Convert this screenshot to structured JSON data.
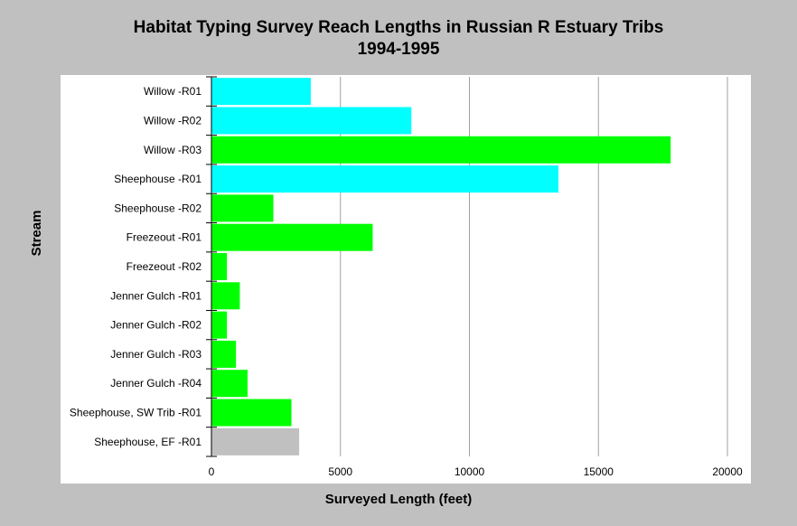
{
  "chart_data": {
    "type": "bar",
    "orientation": "horizontal",
    "title": "Habitat Typing Survey Reach Lengths in Russian R Estuary Tribs",
    "subtitle": "1994-1995",
    "xlabel": "Surveyed Length (feet)",
    "ylabel": "Stream",
    "xlim": [
      0,
      20000
    ],
    "xticks": [
      "0",
      "5000",
      "10000",
      "15000",
      "20000"
    ],
    "xtick_values": [
      0,
      5000,
      10000,
      15000,
      20000
    ],
    "grid": "vertical",
    "legend": "none",
    "categories": [
      "Willow -R01",
      "Willow -R02",
      "Willow -R03",
      "Sheephouse -R01",
      "Sheephouse -R02",
      "Freezeout -R01",
      "Freezeout -R02",
      "Jenner Gulch -R01",
      "Jenner Gulch -R02",
      "Jenner Gulch -R03",
      "Jenner Gulch -R04",
      "Sheephouse, SW Trib -R01",
      "Sheephouse, EF -R01"
    ],
    "values": [
      3850,
      7750,
      17800,
      13450,
      2400,
      6250,
      600,
      1100,
      600,
      950,
      1400,
      3100,
      3400
    ],
    "bar_colors": [
      "#00ffff",
      "#00ffff",
      "#00ff00",
      "#00ffff",
      "#00ff00",
      "#00ff00",
      "#00ff00",
      "#00ff00",
      "#00ff00",
      "#00ff00",
      "#00ff00",
      "#00ff00",
      "#c0c0c0"
    ]
  },
  "colors": {
    "background": "#c0c0c0",
    "plot_background": "#ffffff",
    "gridline": "#a0a0a0"
  }
}
